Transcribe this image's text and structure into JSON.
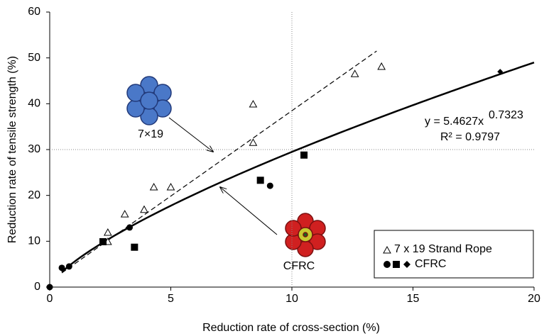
{
  "chart_data": {
    "type": "scatter",
    "x_label": "Reduction rate of  cross-section (%)",
    "y_label": "Reduction rate of tensile strength (%)",
    "xlim": [
      0,
      20
    ],
    "xticks": [
      0,
      5,
      10,
      15,
      20
    ],
    "ylim": [
      0,
      60
    ],
    "yticks": [
      0,
      10,
      20,
      30,
      40,
      50,
      60
    ],
    "xgrid": [
      10
    ],
    "ygrid": [
      30
    ],
    "series": [
      {
        "name": "7 x 19 Strand Rope",
        "marker": "triangle",
        "color": "#000000",
        "x": [
          2.4,
          2.4,
          3.1,
          3.9,
          4.3,
          5.0,
          8.4,
          8.4,
          12.6,
          13.7
        ],
        "values": [
          9.9,
          11.9,
          15.9,
          16.9,
          21.8,
          21.8,
          39.9,
          31.5,
          46.5,
          48.1
        ]
      },
      {
        "name": "CFRC",
        "marker": "circle",
        "color": "#000000",
        "x": [
          0,
          0.5,
          0.8,
          3.3,
          9.1
        ],
        "values": [
          0,
          4.2,
          4.5,
          13,
          22.1
        ]
      },
      {
        "marker": "square",
        "color": "#000000",
        "x": [
          2.2,
          3.5,
          8.7,
          10.5
        ],
        "values": [
          9.9,
          8.7,
          23.3,
          28.8
        ]
      },
      {
        "marker": "diamond",
        "color": "#000000",
        "x": [
          18.6
        ],
        "values": [
          47
        ]
      }
    ],
    "fit": {
      "coef": 5.4627,
      "exp": 0.7323,
      "from": 0.5,
      "to": 20
    },
    "trend": {
      "x": [
        0.5,
        13.5
      ],
      "values": [
        3.1,
        51.5
      ]
    },
    "equation": "y = 5.4627x",
    "equation_exponent": "0.7323",
    "r_squared": "R² = 0.9797",
    "annotations": [
      "7×19",
      "CFRC"
    ]
  }
}
